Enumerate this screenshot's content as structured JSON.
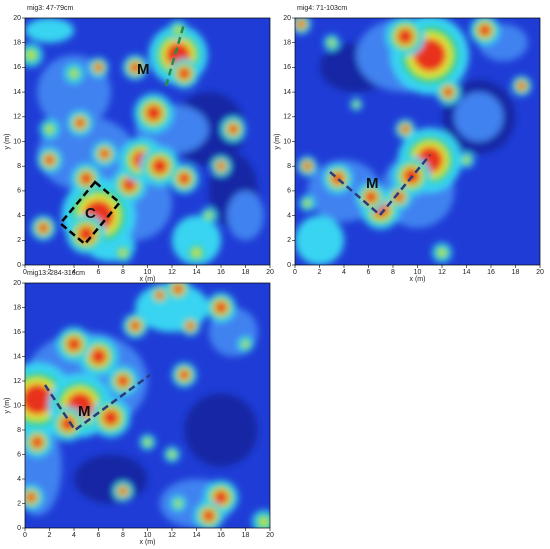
{
  "chart_data": [
    {
      "type": "heatmap",
      "title": "mig3: 47-79cm",
      "xlabel": "x (m)",
      "ylabel": "y (m)",
      "xlim": [
        0,
        20
      ],
      "ylim": [
        0,
        20
      ],
      "xticks": [
        0,
        2,
        4,
        6,
        8,
        10,
        12,
        14,
        16,
        18,
        20
      ],
      "yticks": [
        0,
        2,
        4,
        6,
        8,
        10,
        12,
        14,
        16,
        18,
        20
      ],
      "annotations": [
        "M",
        "C"
      ]
    },
    {
      "type": "heatmap",
      "title": "mig4: 71-103cm",
      "xlabel": "x (m)",
      "ylabel": "y (m)",
      "xlim": [
        0,
        20
      ],
      "ylim": [
        0,
        20
      ],
      "xticks": [
        0,
        2,
        4,
        6,
        8,
        10,
        12,
        14,
        16,
        18,
        20
      ],
      "yticks": [
        0,
        2,
        4,
        6,
        8,
        10,
        12,
        14,
        16,
        18,
        20
      ],
      "annotations": [
        "M"
      ]
    },
    {
      "type": "heatmap",
      "title": "mig13: 284-316cm",
      "xlabel": "x (m)",
      "ylabel": "y (m)",
      "xlim": [
        0,
        20
      ],
      "ylim": [
        0,
        20
      ],
      "xticks": [
        0,
        2,
        4,
        6,
        8,
        10,
        12,
        14,
        16,
        18,
        20
      ],
      "yticks": [
        0,
        2,
        4,
        6,
        8,
        10,
        12,
        14,
        16,
        18,
        20
      ],
      "annotations": [
        "M"
      ]
    }
  ]
}
